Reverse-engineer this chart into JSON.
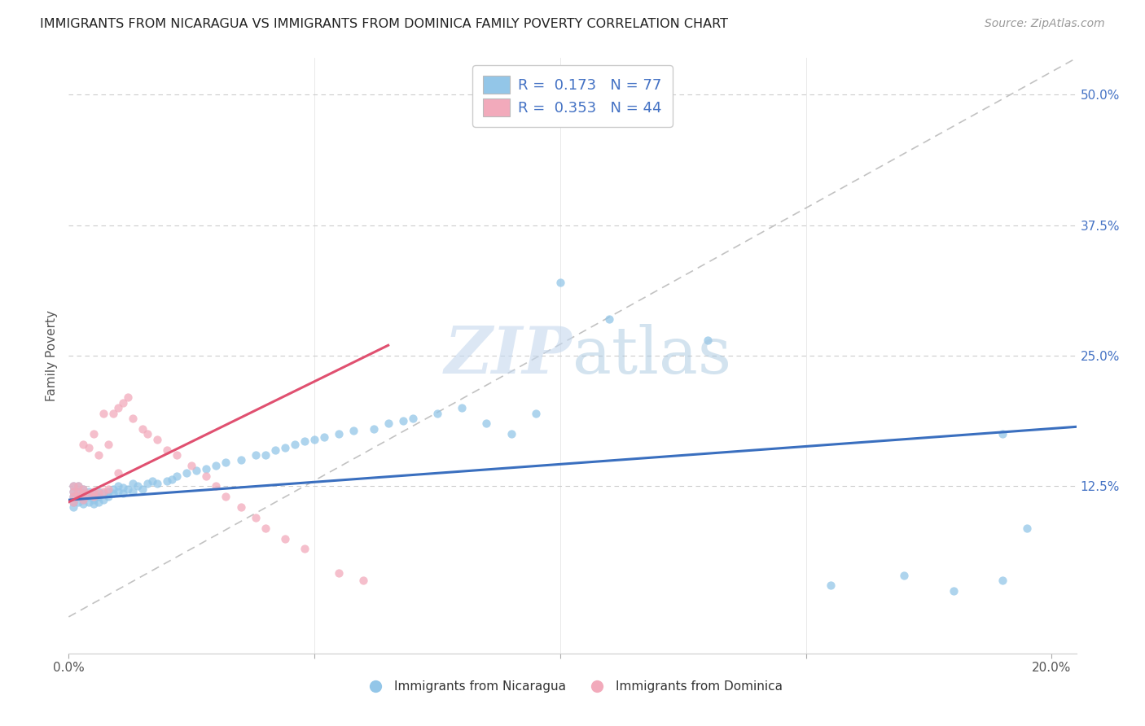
{
  "title": "IMMIGRANTS FROM NICARAGUA VS IMMIGRANTS FROM DOMINICA FAMILY POVERTY CORRELATION CHART",
  "source": "Source: ZipAtlas.com",
  "ylabel": "Family Poverty",
  "ytick_labels": [
    "12.5%",
    "25.0%",
    "37.5%",
    "50.0%"
  ],
  "ytick_values": [
    0.125,
    0.25,
    0.375,
    0.5
  ],
  "xlim": [
    0.0,
    0.205
  ],
  "ylim": [
    -0.035,
    0.535
  ],
  "blue_color": "#93C6E8",
  "pink_color": "#F2AABB",
  "blue_line_color": "#3A6FBF",
  "pink_line_color": "#E05070",
  "diag_line_color": "#B8B8B8",
  "grid_color": "#CCCCCC",
  "nic_x": [
    0.001,
    0.001,
    0.001,
    0.001,
    0.001,
    0.002,
    0.002,
    0.002,
    0.002,
    0.003,
    0.003,
    0.003,
    0.003,
    0.004,
    0.004,
    0.004,
    0.005,
    0.005,
    0.005,
    0.006,
    0.006,
    0.006,
    0.007,
    0.007,
    0.008,
    0.008,
    0.009,
    0.009,
    0.01,
    0.01,
    0.011,
    0.011,
    0.012,
    0.013,
    0.013,
    0.014,
    0.015,
    0.016,
    0.017,
    0.018,
    0.02,
    0.021,
    0.022,
    0.024,
    0.026,
    0.028,
    0.03,
    0.032,
    0.035,
    0.038,
    0.04,
    0.042,
    0.044,
    0.046,
    0.048,
    0.05,
    0.052,
    0.055,
    0.058,
    0.062,
    0.065,
    0.068,
    0.07,
    0.075,
    0.08,
    0.085,
    0.09,
    0.095,
    0.1,
    0.11,
    0.13,
    0.155,
    0.17,
    0.18,
    0.19,
    0.19,
    0.195
  ],
  "nic_y": [
    0.105,
    0.11,
    0.115,
    0.12,
    0.125,
    0.11,
    0.115,
    0.12,
    0.125,
    0.108,
    0.112,
    0.118,
    0.122,
    0.11,
    0.115,
    0.12,
    0.108,
    0.112,
    0.118,
    0.11,
    0.115,
    0.12,
    0.112,
    0.118,
    0.115,
    0.12,
    0.118,
    0.122,
    0.12,
    0.125,
    0.118,
    0.124,
    0.122,
    0.12,
    0.128,
    0.125,
    0.122,
    0.128,
    0.13,
    0.128,
    0.13,
    0.132,
    0.135,
    0.138,
    0.14,
    0.142,
    0.145,
    0.148,
    0.15,
    0.155,
    0.155,
    0.16,
    0.162,
    0.165,
    0.168,
    0.17,
    0.172,
    0.175,
    0.178,
    0.18,
    0.185,
    0.188,
    0.19,
    0.195,
    0.2,
    0.185,
    0.175,
    0.195,
    0.32,
    0.285,
    0.265,
    0.03,
    0.04,
    0.025,
    0.035,
    0.175,
    0.085
  ],
  "dom_x": [
    0.001,
    0.001,
    0.001,
    0.001,
    0.002,
    0.002,
    0.002,
    0.003,
    0.003,
    0.003,
    0.003,
    0.004,
    0.004,
    0.005,
    0.005,
    0.005,
    0.006,
    0.006,
    0.007,
    0.007,
    0.008,
    0.008,
    0.009,
    0.01,
    0.01,
    0.011,
    0.012,
    0.013,
    0.015,
    0.016,
    0.018,
    0.02,
    0.022,
    0.025,
    0.028,
    0.03,
    0.032,
    0.035,
    0.038,
    0.04,
    0.044,
    0.048,
    0.055,
    0.06
  ],
  "dom_y": [
    0.11,
    0.115,
    0.12,
    0.125,
    0.115,
    0.12,
    0.125,
    0.112,
    0.118,
    0.122,
    0.165,
    0.118,
    0.162,
    0.115,
    0.12,
    0.175,
    0.118,
    0.155,
    0.12,
    0.195,
    0.122,
    0.165,
    0.195,
    0.2,
    0.138,
    0.205,
    0.21,
    0.19,
    0.18,
    0.175,
    0.17,
    0.16,
    0.155,
    0.145,
    0.135,
    0.125,
    0.115,
    0.105,
    0.095,
    0.085,
    0.075,
    0.065,
    0.042,
    0.035
  ],
  "nic_line_x0": 0.0,
  "nic_line_x1": 0.205,
  "nic_line_y0": 0.112,
  "nic_line_y1": 0.182,
  "dom_line_x0": 0.0,
  "dom_line_x1": 0.065,
  "dom_line_y0": 0.11,
  "dom_line_y1": 0.26
}
